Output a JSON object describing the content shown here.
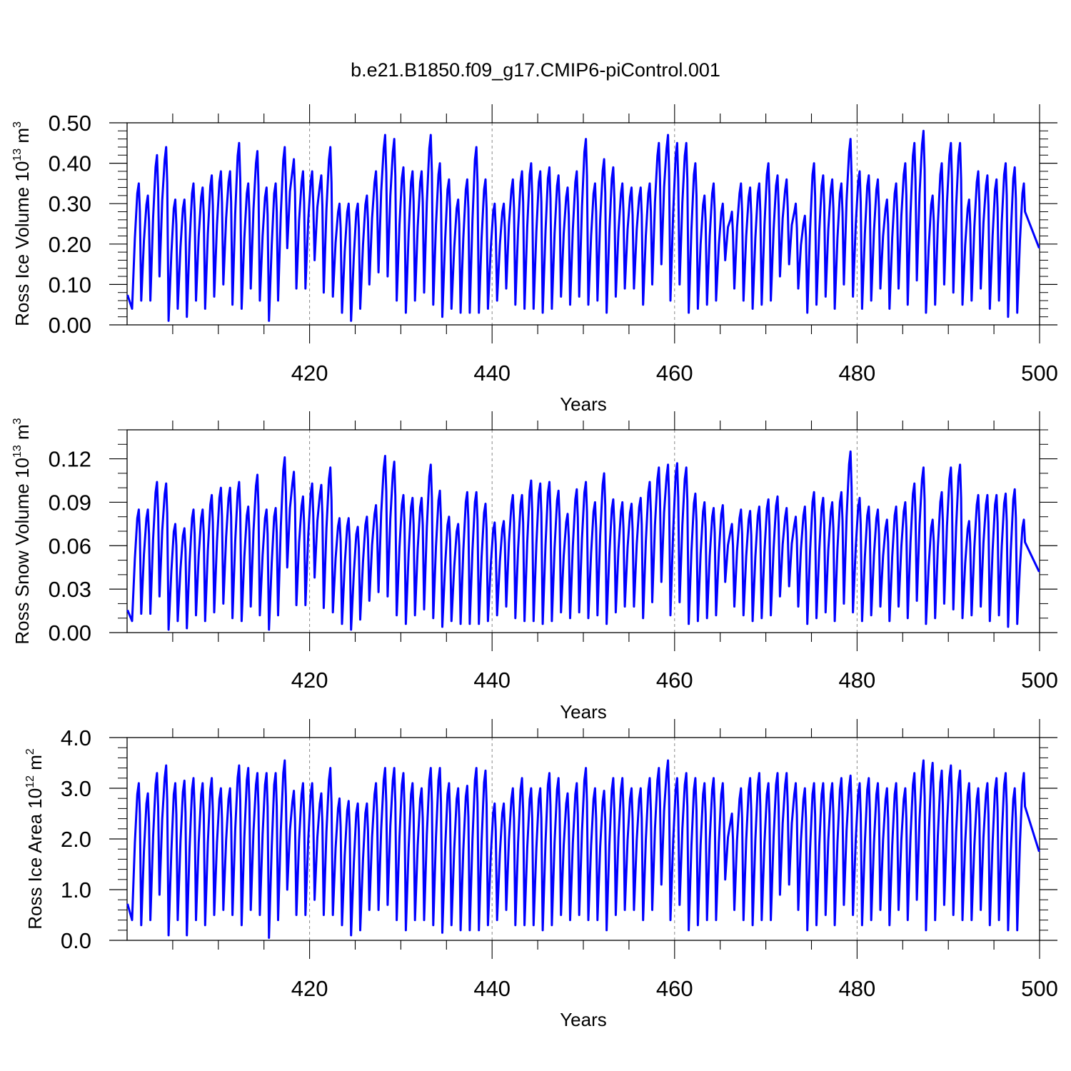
{
  "figure_title": "b.e21.B1850.f09_g17.CMIP6-piControl.001",
  "line_color": "#0000ff",
  "chart_data": [
    {
      "type": "line",
      "ylabel": {
        "main": "Ross Ice Volume 10",
        "exponent": "13",
        "unit": " m",
        "unit_exponent": "3"
      },
      "xlabel": "Years",
      "xlim": [
        400,
        500
      ],
      "ylim": [
        0,
        0.5
      ],
      "yticks": [
        "0.00",
        "0.10",
        "0.20",
        "0.30",
        "0.40",
        "0.50"
      ],
      "xticks": [
        "420",
        "440",
        "460",
        "480",
        "500"
      ],
      "x_grid_dashed_at": [
        420,
        440,
        460,
        480
      ],
      "series": [
        {
          "peaks": [
            0.35,
            0.32,
            0.42,
            0.44,
            0.31,
            0.31,
            0.35,
            0.34,
            0.37,
            0.38,
            0.38,
            0.45,
            0.35,
            0.43,
            0.34,
            0.35,
            0.44,
            0.41,
            0.38,
            0.38,
            0.37,
            0.44,
            0.3,
            0.3,
            0.3,
            0.32,
            0.38,
            0.47,
            0.46,
            0.39,
            0.38,
            0.38,
            0.47,
            0.4,
            0.36,
            0.31,
            0.36,
            0.44,
            0.36,
            0.3,
            0.3,
            0.36,
            0.38,
            0.4,
            0.38,
            0.39,
            0.37,
            0.34,
            0.38,
            0.46,
            0.35,
            0.41,
            0.39,
            0.35,
            0.34,
            0.34,
            0.35,
            0.45,
            0.47,
            0.45,
            0.45,
            0.4,
            0.32,
            0.35,
            0.3,
            0.28,
            0.35,
            0.34,
            0.35,
            0.4,
            0.37,
            0.36,
            0.3,
            0.27,
            0.4,
            0.37,
            0.36,
            0.35,
            0.46,
            0.38,
            0.37,
            0.36,
            0.31,
            0.35,
            0.4,
            0.45,
            0.48,
            0.32,
            0.4,
            0.45,
            0.45,
            0.31,
            0.38,
            0.37,
            0.36,
            0.4,
            0.39,
            0.35
          ],
          "troughs": [
            0.04,
            0.06,
            0.06,
            0.12,
            0.01,
            0.04,
            0.02,
            0.06,
            0.04,
            0.07,
            0.1,
            0.05,
            0.04,
            0.09,
            0.06,
            0.01,
            0.06,
            0.19,
            0.09,
            0.09,
            0.16,
            0.08,
            0.07,
            0.03,
            0.01,
            0.04,
            0.1,
            0.13,
            0.12,
            0.06,
            0.03,
            0.06,
            0.08,
            0.05,
            0.02,
            0.04,
            0.03,
            0.03,
            0.03,
            0.04,
            0.06,
            0.09,
            0.05,
            0.04,
            0.04,
            0.03,
            0.04,
            0.07,
            0.05,
            0.07,
            0.05,
            0.06,
            0.03,
            0.07,
            0.09,
            0.09,
            0.05,
            0.1,
            0.15,
            0.06,
            0.1,
            0.03,
            0.04,
            0.05,
            0.06,
            0.16,
            0.09,
            0.06,
            0.04,
            0.05,
            0.06,
            0.12,
            0.15,
            0.09,
            0.03,
            0.05,
            0.07,
            0.04,
            0.1,
            0.07,
            0.04,
            0.06,
            0.09,
            0.04,
            0.09,
            0.05,
            0.11,
            0.03,
            0.05,
            0.1,
            0.08,
            0.05,
            0.06,
            0.09,
            0.04,
            0.06,
            0.02,
            0.03
          ]
        }
      ]
    },
    {
      "type": "line",
      "ylabel": {
        "main": "Ross Snow Volume 10",
        "exponent": "13",
        "unit": " m",
        "unit_exponent": "3"
      },
      "xlabel": "Years",
      "xlim": [
        400,
        500
      ],
      "ylim": [
        0,
        0.14
      ],
      "yticks": [
        "0.00",
        "0.03",
        "0.06",
        "0.09",
        "0.12"
      ],
      "xticks": [
        "420",
        "440",
        "460",
        "480",
        "500"
      ],
      "x_grid_dashed_at": [
        420,
        440,
        460,
        480
      ],
      "series": [
        {
          "peaks": [
            0.085,
            0.085,
            0.104,
            0.103,
            0.075,
            0.072,
            0.085,
            0.085,
            0.095,
            0.1,
            0.1,
            0.104,
            0.087,
            0.109,
            0.085,
            0.086,
            0.121,
            0.111,
            0.094,
            0.103,
            0.102,
            0.114,
            0.079,
            0.079,
            0.073,
            0.08,
            0.088,
            0.122,
            0.118,
            0.095,
            0.093,
            0.093,
            0.116,
            0.098,
            0.08,
            0.075,
            0.097,
            0.097,
            0.089,
            0.076,
            0.077,
            0.095,
            0.095,
            0.105,
            0.103,
            0.104,
            0.098,
            0.082,
            0.099,
            0.104,
            0.09,
            0.11,
            0.092,
            0.09,
            0.089,
            0.093,
            0.104,
            0.114,
            0.116,
            0.117,
            0.114,
            0.096,
            0.09,
            0.086,
            0.088,
            0.075,
            0.085,
            0.084,
            0.087,
            0.092,
            0.094,
            0.086,
            0.08,
            0.087,
            0.097,
            0.093,
            0.09,
            0.097,
            0.125,
            0.093,
            0.087,
            0.085,
            0.078,
            0.087,
            0.09,
            0.103,
            0.114,
            0.078,
            0.097,
            0.114,
            0.116,
            0.077,
            0.095,
            0.095,
            0.095,
            0.096,
            0.099,
            0.078
          ],
          "troughs": [
            0.008,
            0.013,
            0.013,
            0.025,
            0.002,
            0.008,
            0.003,
            0.012,
            0.008,
            0.014,
            0.02,
            0.01,
            0.008,
            0.018,
            0.012,
            0.002,
            0.012,
            0.045,
            0.019,
            0.019,
            0.038,
            0.017,
            0.014,
            0.006,
            0.002,
            0.009,
            0.022,
            0.028,
            0.025,
            0.012,
            0.006,
            0.012,
            0.016,
            0.01,
            0.004,
            0.008,
            0.006,
            0.006,
            0.006,
            0.008,
            0.012,
            0.018,
            0.01,
            0.008,
            0.008,
            0.006,
            0.008,
            0.014,
            0.01,
            0.014,
            0.01,
            0.012,
            0.006,
            0.014,
            0.018,
            0.018,
            0.01,
            0.021,
            0.035,
            0.012,
            0.021,
            0.006,
            0.008,
            0.01,
            0.012,
            0.035,
            0.018,
            0.012,
            0.008,
            0.01,
            0.012,
            0.025,
            0.032,
            0.018,
            0.006,
            0.01,
            0.014,
            0.008,
            0.02,
            0.014,
            0.008,
            0.012,
            0.018,
            0.008,
            0.018,
            0.01,
            0.022,
            0.006,
            0.01,
            0.02,
            0.016,
            0.01,
            0.012,
            0.018,
            0.008,
            0.012,
            0.004,
            0.006
          ]
        }
      ]
    },
    {
      "type": "line",
      "ylabel": {
        "main": "Ross Ice Area 10",
        "exponent": "12",
        "unit": " m",
        "unit_exponent": "2"
      },
      "xlabel": "Years",
      "xlim": [
        400,
        500
      ],
      "ylim": [
        0,
        4.0
      ],
      "yticks": [
        "0.0",
        "1.0",
        "2.0",
        "3.0",
        "4.0"
      ],
      "xticks": [
        "420",
        "440",
        "460",
        "480",
        "500"
      ],
      "x_grid_dashed_at": [
        420,
        440,
        460,
        480
      ],
      "series": [
        {
          "peaks": [
            3.1,
            2.9,
            3.3,
            3.45,
            3.1,
            3.15,
            3.2,
            3.1,
            3.2,
            3.0,
            3.0,
            3.45,
            3.4,
            3.3,
            3.3,
            3.3,
            3.55,
            2.95,
            3.1,
            3.1,
            2.9,
            3.4,
            2.8,
            2.75,
            2.7,
            2.7,
            3.1,
            3.4,
            3.4,
            3.3,
            3.1,
            3.0,
            3.4,
            3.4,
            3.1,
            3.0,
            3.05,
            3.4,
            3.35,
            2.7,
            2.7,
            3.0,
            3.2,
            3.0,
            3.0,
            3.3,
            3.2,
            2.9,
            3.1,
            3.4,
            3.0,
            2.95,
            3.2,
            3.2,
            3.0,
            3.0,
            3.2,
            3.4,
            3.55,
            3.2,
            3.3,
            3.2,
            3.1,
            3.2,
            3.1,
            2.5,
            3.0,
            3.2,
            3.3,
            3.1,
            3.3,
            3.3,
            3.1,
            3.0,
            3.1,
            3.1,
            3.1,
            3.2,
            3.25,
            3.1,
            3.2,
            3.1,
            3.0,
            3.1,
            3.0,
            3.3,
            3.55,
            3.5,
            3.35,
            3.45,
            3.35,
            3.1,
            3.0,
            3.1,
            3.2,
            3.3,
            3.0,
            3.3
          ],
          "troughs": [
            0.4,
            0.3,
            0.4,
            0.9,
            0.1,
            0.4,
            0.1,
            0.4,
            0.3,
            0.5,
            0.6,
            0.5,
            0.3,
            0.6,
            0.5,
            0.05,
            0.4,
            1.0,
            0.5,
            0.5,
            0.8,
            0.5,
            0.5,
            0.3,
            0.1,
            0.2,
            0.6,
            0.6,
            0.7,
            0.4,
            0.2,
            0.4,
            0.4,
            0.3,
            0.15,
            0.3,
            0.2,
            0.2,
            0.2,
            0.3,
            0.4,
            0.6,
            0.3,
            0.3,
            0.3,
            0.2,
            0.3,
            0.5,
            0.4,
            0.5,
            0.4,
            0.4,
            0.2,
            0.5,
            0.6,
            0.6,
            0.4,
            0.6,
            1.1,
            0.4,
            0.7,
            0.2,
            0.3,
            0.4,
            0.4,
            1.2,
            0.6,
            0.4,
            0.3,
            0.4,
            0.4,
            0.9,
            1.1,
            0.6,
            0.2,
            0.3,
            0.5,
            0.3,
            0.7,
            0.5,
            0.3,
            0.4,
            0.6,
            0.3,
            0.6,
            0.4,
            0.8,
            0.2,
            0.4,
            0.7,
            0.5,
            0.4,
            0.4,
            0.6,
            0.3,
            0.4,
            0.2,
            0.2
          ]
        }
      ]
    }
  ]
}
